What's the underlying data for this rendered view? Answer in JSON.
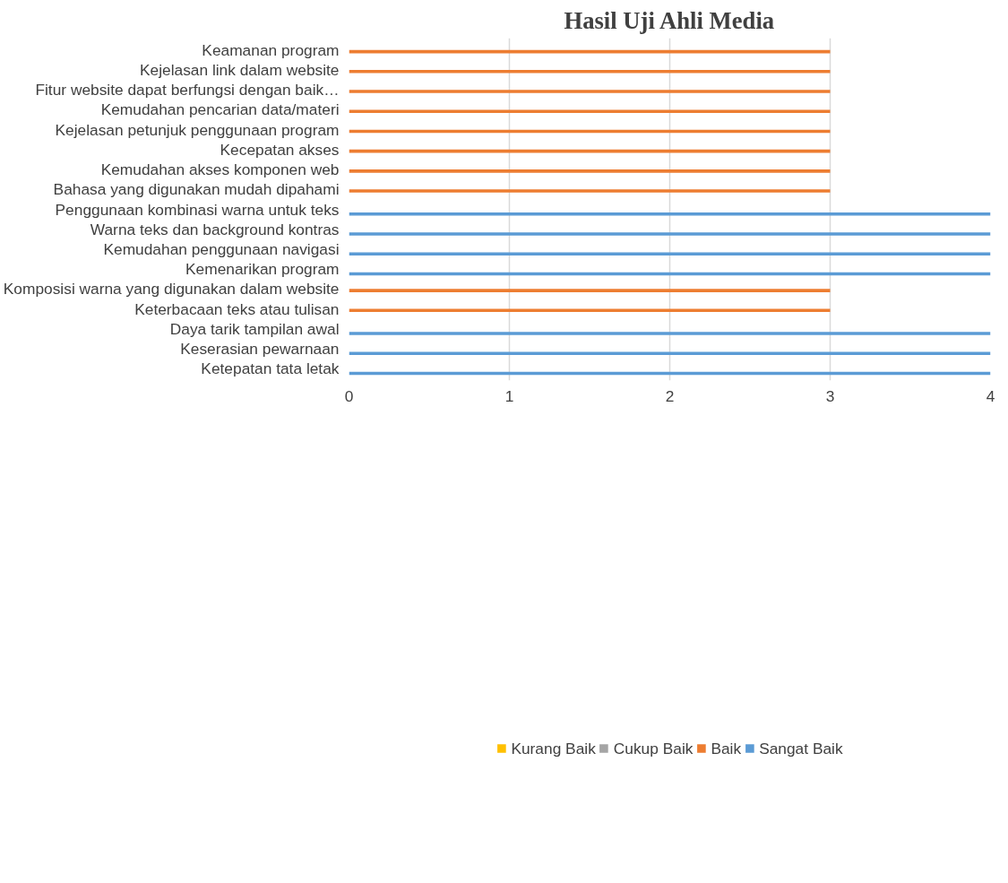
{
  "chart_data": {
    "type": "bar",
    "orientation": "horizontal",
    "title": "Hasil Uji Ahli Media",
    "categories": [
      "Keamanan program",
      "Kejelasan link dalam website",
      "Fitur website dapat berfungsi dengan baik…",
      "Kemudahan pencarian data/materi",
      "Kejelasan petunjuk penggunaan program",
      "Kecepatan akses",
      "Kemudahan akses komponen web",
      "Bahasa yang digunakan mudah dipahami",
      "Penggunaan kombinasi warna untuk teks",
      "Warna teks dan background kontras",
      "Kemudahan penggunaan navigasi",
      "Kemenarikan program",
      "Komposisi warna yang digunakan dalam website",
      "Keterbacaan teks atau tulisan",
      "Daya tarik tampilan awal",
      "Keserasian pewarnaan",
      "Ketepatan tata letak"
    ],
    "series": [
      {
        "name": "Kurang Baik",
        "color": "#ffc000",
        "values": [
          null,
          null,
          null,
          null,
          null,
          null,
          null,
          null,
          null,
          null,
          null,
          null,
          null,
          null,
          null,
          null,
          null
        ]
      },
      {
        "name": "Cukup Baik",
        "color": "#a5a5a5",
        "values": [
          null,
          null,
          null,
          null,
          null,
          null,
          null,
          null,
          null,
          null,
          null,
          null,
          null,
          null,
          null,
          null,
          null
        ]
      },
      {
        "name": "Baik",
        "color": "#ed7d31",
        "values": [
          3,
          3,
          3,
          3,
          3,
          3,
          3,
          3,
          null,
          null,
          null,
          null,
          3,
          3,
          null,
          null,
          null
        ]
      },
      {
        "name": "Sangat Baik",
        "color": "#5b9bd5",
        "values": [
          null,
          null,
          null,
          null,
          null,
          null,
          null,
          null,
          4,
          4,
          4,
          4,
          null,
          null,
          4,
          4,
          4
        ]
      }
    ],
    "xlim": [
      0,
      4
    ],
    "xticks": [
      0,
      1,
      2,
      3,
      4
    ],
    "grid": "x",
    "legend": "bottom"
  }
}
